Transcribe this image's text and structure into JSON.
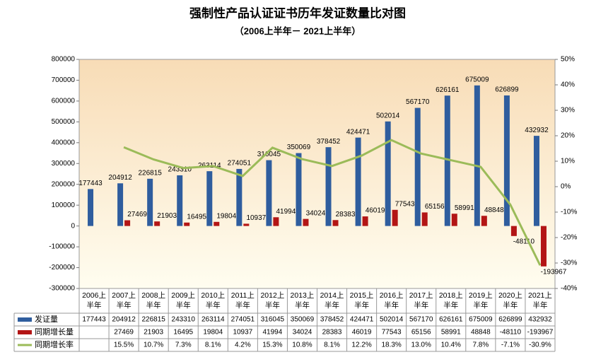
{
  "chart_data": {
    "type": "bar-line",
    "title": "强制性产品认证证书历年发证数量比对图",
    "subtitle": "（2006上半年－ 2021上半年）",
    "categories": [
      "2006上半年",
      "2007上半年",
      "2008上半年",
      "2009上半年",
      "2010上半年",
      "2011上半年",
      "2012上半年",
      "2013上半年",
      "2014上半年",
      "2015上半年",
      "2016上半年",
      "2017上半年",
      "2018上半年",
      "2019上半年",
      "2020上半年",
      "2021上半年"
    ],
    "series": [
      {
        "name": "发证量",
        "type": "bar",
        "color": "#2f5d9e",
        "values": [
          177443,
          204912,
          226815,
          243310,
          263114,
          274051,
          316045,
          350069,
          378452,
          424471,
          502014,
          567170,
          626161,
          675009,
          626899,
          432932
        ]
      },
      {
        "name": "同期增长量",
        "type": "bar",
        "color": "#b31515",
        "values": [
          null,
          27469,
          21903,
          16495,
          19804,
          10937,
          41994,
          34024,
          28383,
          46019,
          77543,
          65156,
          58991,
          48848,
          -48110,
          -193967
        ]
      },
      {
        "name": "同期增长率",
        "type": "line",
        "axis": "y2",
        "color": "#9bbb59",
        "values": [
          null,
          15.5,
          10.7,
          7.3,
          8.1,
          4.2,
          15.3,
          10.8,
          8.1,
          12.2,
          18.3,
          13.0,
          10.4,
          7.8,
          -7.1,
          -30.9
        ],
        "value_labels": [
          null,
          "15.5%",
          "10.7%",
          "7.3%",
          "8.1%",
          "4.2%",
          "15.3%",
          "10.8%",
          "8.1%",
          "12.2%",
          "18.3%",
          "13.0%",
          "10.4%",
          "7.8%",
          "-7.1%",
          "-30.9%"
        ]
      }
    ],
    "ylim": [
      -300000,
      800000
    ],
    "yticks": [
      -300000,
      -200000,
      -100000,
      0,
      100000,
      200000,
      300000,
      400000,
      500000,
      600000,
      700000,
      800000
    ],
    "y2lim": [
      -40,
      50
    ],
    "y2ticks": [
      {
        "value": -40,
        "label": "-40%"
      },
      {
        "value": -30,
        "label": "-30%"
      },
      {
        "value": -20,
        "label": "-20%"
      },
      {
        "value": -10,
        "label": "-10%"
      },
      {
        "value": 0,
        "label": "0%"
      },
      {
        "value": 10,
        "label": "10%"
      },
      {
        "value": 20,
        "label": "20%"
      },
      {
        "value": 30,
        "label": "30%"
      },
      {
        "value": 40,
        "label": "40%"
      },
      {
        "value": 50,
        "label": "50%"
      }
    ]
  }
}
